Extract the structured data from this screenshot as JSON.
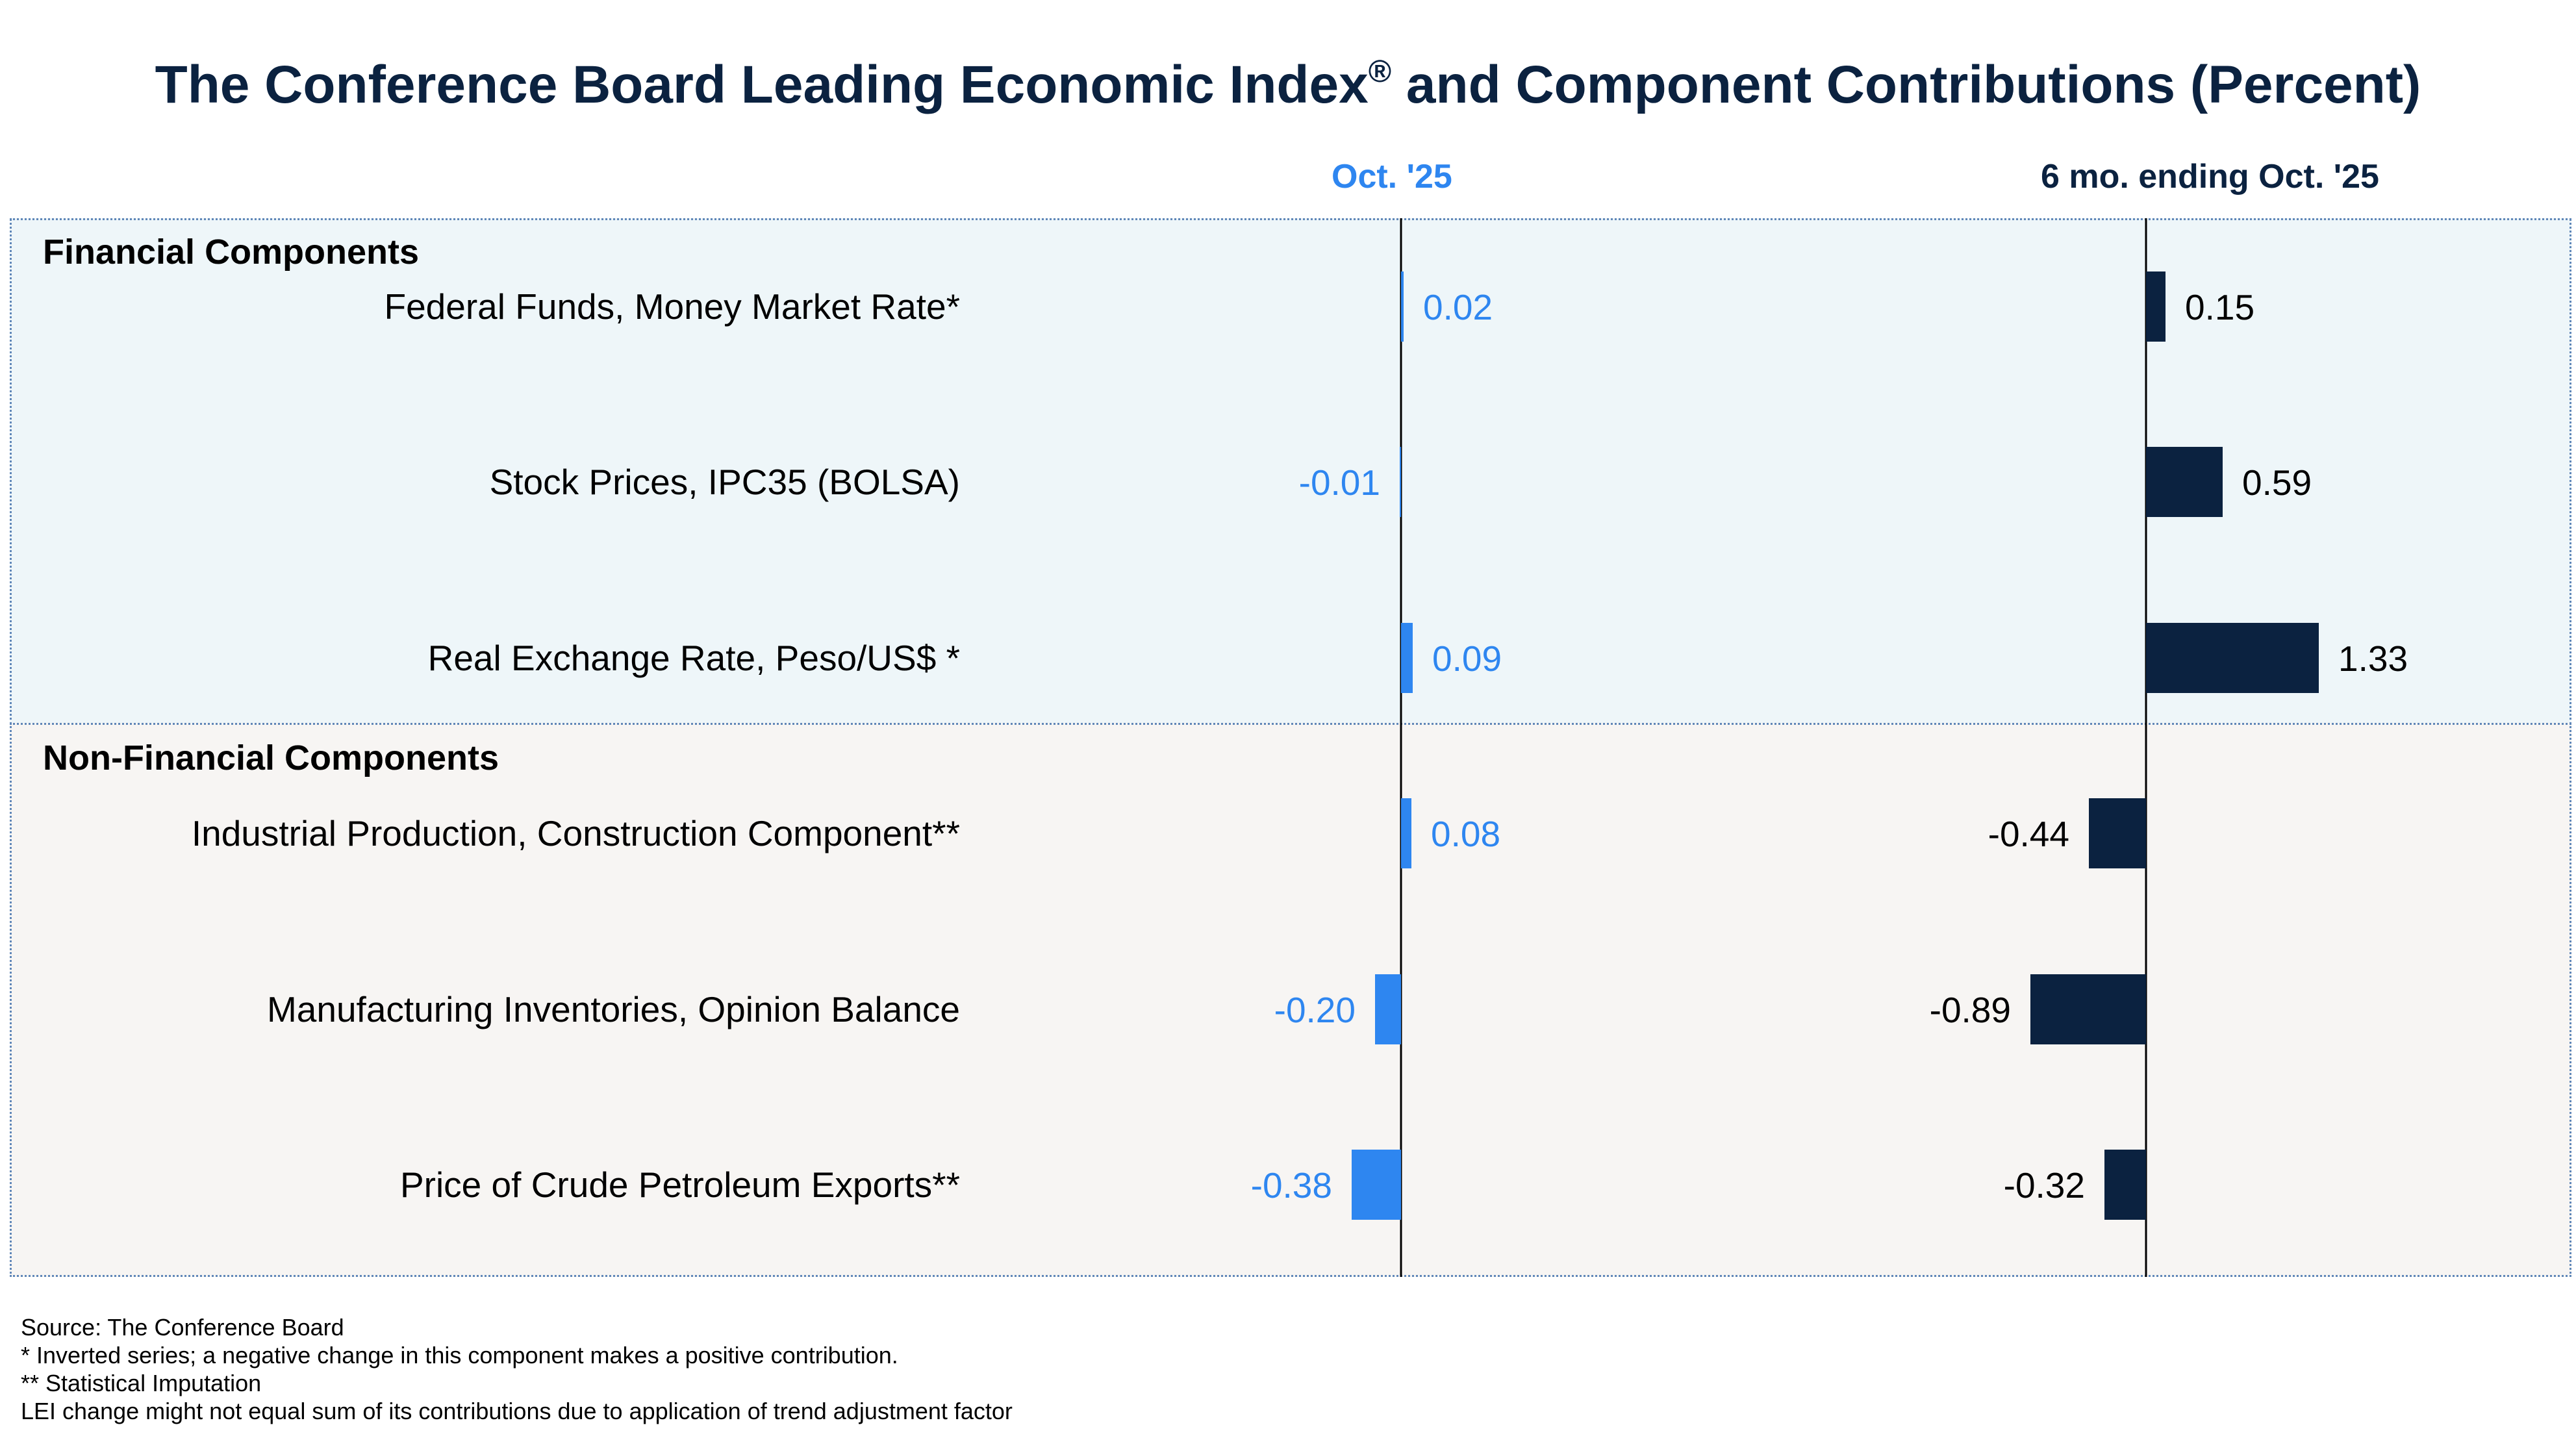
{
  "title": "The Conference Board Leading Economic Index",
  "title_mark": "®",
  "title_suffix": " and Component Contributions (Percent)",
  "colors": {
    "oct": "#2e86f0",
    "six_month": "#0b2240",
    "title": "#0b2240"
  },
  "chart_data": {
    "type": "bar",
    "orientation": "horizontal",
    "title": "The Conference Board Leading Economic Index® and Component Contributions (Percent)",
    "groups": [
      {
        "name": "Financial Components",
        "items": [
          0,
          1,
          2
        ]
      },
      {
        "name": "Non-Financial Components",
        "items": [
          3,
          4,
          5
        ]
      }
    ],
    "categories": [
      "Federal Funds, Money Market Rate*",
      "Stock Prices, IPC35 (BOLSA)",
      "Real Exchange Rate, Peso/US$ *",
      "Industrial Production, Construction Component**",
      "Manufacturing Inventories, Opinion Balance",
      "Price of Crude Petroleum Exports**"
    ],
    "series": [
      {
        "name": "Oct. '25",
        "values": [
          0.02,
          -0.01,
          0.09,
          0.08,
          -0.2,
          -0.38
        ],
        "labels": [
          "0.02",
          "-0.01",
          "0.09",
          "0.08",
          "-0.20",
          "-0.38"
        ]
      },
      {
        "name": "6 mo. ending Oct. '25",
        "values": [
          0.15,
          0.59,
          1.33,
          -0.44,
          -0.89,
          -0.32
        ],
        "labels": [
          "0.15",
          "0.59",
          "1.33",
          "-0.44",
          "-0.89",
          "-0.32"
        ]
      }
    ]
  },
  "footnotes": [
    "Source: The Conference Board",
    "*  Inverted series; a negative change in this component makes a positive contribution.",
    "** Statistical Imputation",
    "LEI change might not equal sum of its contributions due to application of trend adjustment factor"
  ]
}
